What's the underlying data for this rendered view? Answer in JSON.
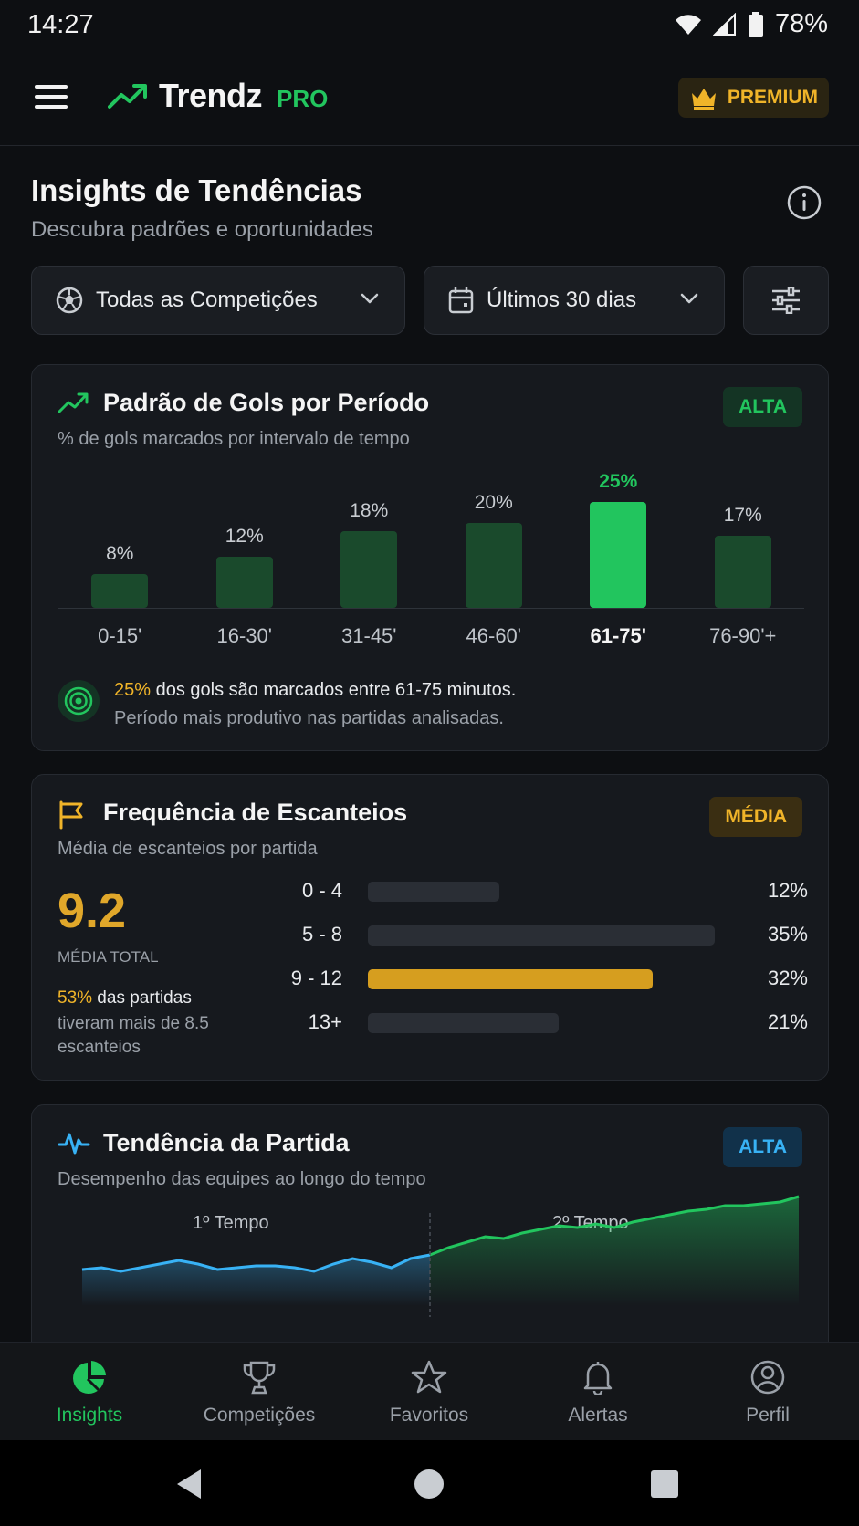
{
  "status_bar": {
    "time": "14:27",
    "battery": "78%"
  },
  "app": {
    "name": "Trendz",
    "tier": "PRO",
    "premium_label": "PREMIUM"
  },
  "header": {
    "title": "Insights de Tendências",
    "subtitle": "Descubra padrões e oportunidades"
  },
  "filters": {
    "competition": "Todas as Competições",
    "period": "Últimos 30 dias"
  },
  "goals_card": {
    "title": "Padrão de Gols por Período",
    "subtitle": "% de gols marcados por intervalo de tempo",
    "badge": "ALTA",
    "insight_highlight": "25%",
    "insight_text": " dos gols são marcados entre 61-75 minutos.",
    "insight_sub": "Período mais produtivo nas partidas analisadas."
  },
  "chart_data": {
    "type": "bar",
    "categories": [
      "0-15'",
      "16-30'",
      "31-45'",
      "46-60'",
      "61-75'",
      "76-90'+"
    ],
    "values": [
      8,
      12,
      18,
      20,
      25,
      17
    ],
    "value_labels": [
      "8%",
      "12%",
      "18%",
      "20%",
      "25%",
      "17%"
    ],
    "highlight_index": 4,
    "ylim": [
      0,
      25
    ],
    "colors": {
      "bar": "#1a4a2c",
      "highlight": "#22c55e"
    }
  },
  "corners_card": {
    "title": "Frequência de Escanteios",
    "subtitle": "Média de escanteios por partida",
    "badge": "MÉDIA",
    "average": "9.2",
    "average_label": "MÉDIA TOTAL",
    "note_highlight": "53%",
    "note_text": " das partidas",
    "note_rest": "tiveram mais de 8.5 escanteios",
    "distribution": [
      {
        "range": "0 - 4",
        "pct": "12%",
        "fill": 0.38
      },
      {
        "range": "5 - 8",
        "pct": "35%",
        "fill": 1.0
      },
      {
        "range": "9 - 12",
        "pct": "32%",
        "fill": 0.82,
        "highlight": true
      },
      {
        "range": "13+",
        "pct": "21%",
        "fill": 0.55
      }
    ]
  },
  "trend_card": {
    "title": "Tendência da Partida",
    "subtitle": "Desempenho das equipes ao longo do tempo",
    "badge": "ALTA",
    "first_half": "1º Tempo",
    "second_half": "2º Tempo",
    "first_half_series": [
      30,
      31,
      29,
      31,
      33,
      35,
      33,
      30,
      31,
      32,
      32,
      31,
      29,
      33,
      36,
      34,
      31,
      36,
      38
    ],
    "second_half_series": [
      38,
      42,
      45,
      48,
      47,
      50,
      52,
      54,
      53,
      55,
      53,
      56,
      58,
      60,
      62,
      63,
      65,
      65,
      66,
      67,
      70
    ]
  },
  "bottom_nav": [
    {
      "label": "Insights",
      "icon": "pie-chart-icon",
      "active": true
    },
    {
      "label": "Competições",
      "icon": "trophy-icon",
      "active": false
    },
    {
      "label": "Favoritos",
      "icon": "star-icon",
      "active": false
    },
    {
      "label": "Alertas",
      "icon": "bell-icon",
      "active": false
    },
    {
      "label": "Perfil",
      "icon": "profile-icon",
      "active": false
    }
  ],
  "colors": {
    "accent": "#22c55e",
    "gold": "#f0b429",
    "blue": "#38b2f5",
    "background": "#0d0f12",
    "card": "#16191e"
  }
}
